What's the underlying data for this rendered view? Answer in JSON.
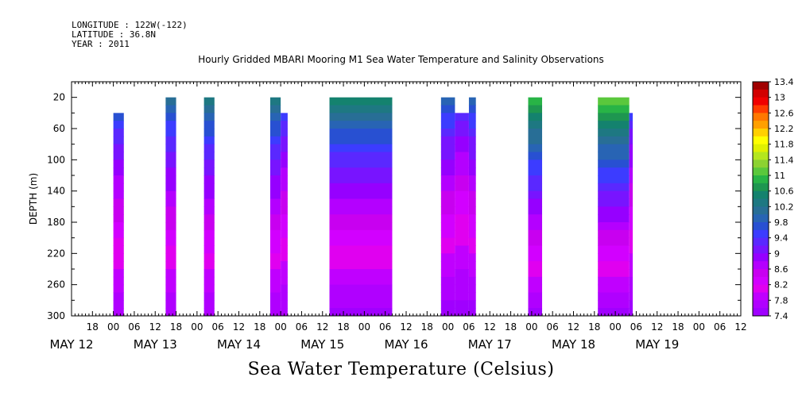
{
  "header": {
    "longitude": "LONGITUDE : 122W(-122)",
    "latitude": "LATITUDE : 36.8N",
    "year": "YEAR : 2011"
  },
  "chart_data": {
    "type": "heatmap",
    "title": "Hourly Gridded MBARI Mooring M1 Sea Water Temperature and Salinity Observations",
    "xlabel": "Sea Water Temperature (Celsius)",
    "ylabel": "DEPTH (m)",
    "x_hours_range": [
      -12,
      180
    ],
    "xlim_hours_since_may12_00": [
      -12,
      180
    ],
    "ylim": [
      300,
      0
    ],
    "y_ticks": [
      20,
      60,
      100,
      140,
      180,
      220,
      260,
      300
    ],
    "x_ticks": [
      {
        "h": -6,
        "label": "18"
      },
      {
        "h": 0,
        "label": "00"
      },
      {
        "h": 6,
        "label": "06"
      },
      {
        "h": 12,
        "label": "12"
      },
      {
        "h": 18,
        "label": "18"
      },
      {
        "h": 24,
        "label": "00"
      },
      {
        "h": 30,
        "label": "06"
      },
      {
        "h": 36,
        "label": "12"
      },
      {
        "h": 42,
        "label": "18"
      },
      {
        "h": 48,
        "label": "00"
      },
      {
        "h": 54,
        "label": "06"
      },
      {
        "h": 60,
        "label": "12"
      },
      {
        "h": 66,
        "label": "18"
      },
      {
        "h": 72,
        "label": "00"
      },
      {
        "h": 78,
        "label": "06"
      },
      {
        "h": 84,
        "label": "12"
      },
      {
        "h": 90,
        "label": "18"
      },
      {
        "h": 96,
        "label": "00"
      },
      {
        "h": 102,
        "label": "06"
      },
      {
        "h": 108,
        "label": "12"
      },
      {
        "h": 114,
        "label": "18"
      },
      {
        "h": 120,
        "label": "00"
      },
      {
        "h": 126,
        "label": "06"
      },
      {
        "h": 132,
        "label": "12"
      },
      {
        "h": 138,
        "label": "18"
      },
      {
        "h": 144,
        "label": "00"
      },
      {
        "h": 150,
        "label": "06"
      },
      {
        "h": 156,
        "label": "12"
      },
      {
        "h": 162,
        "label": "18"
      },
      {
        "h": 168,
        "label": "00"
      },
      {
        "h": 174,
        "label": "06"
      },
      {
        "h": 180,
        "label": "12"
      }
    ],
    "date_labels": [
      {
        "h": -12,
        "label": "MAY 12"
      },
      {
        "h": 12,
        "label": "MAY 13"
      },
      {
        "h": 36,
        "label": "MAY 14"
      },
      {
        "h": 60,
        "label": "MAY 15"
      },
      {
        "h": 84,
        "label": "MAY 16"
      },
      {
        "h": 108,
        "label": "MAY 17"
      },
      {
        "h": 132,
        "label": "MAY 18"
      },
      {
        "h": 156,
        "label": "MAY 19"
      }
    ],
    "data_segments": [
      {
        "start_h": 0,
        "end_h": 3,
        "top_depth": 40,
        "surface_temp": 9.8,
        "bottom_temp": 7.6
      },
      {
        "start_h": 15,
        "end_h": 18,
        "top_depth": 20,
        "surface_temp": 10.2,
        "bottom_temp": 7.6
      },
      {
        "start_h": 26,
        "end_h": 29,
        "top_depth": 20,
        "surface_temp": 10.4,
        "bottom_temp": 7.6
      },
      {
        "start_h": 45,
        "end_h": 48,
        "top_depth": 20,
        "surface_temp": 10.4,
        "bottom_temp": 7.6
      },
      {
        "start_h": 48,
        "end_h": 50,
        "top_depth": 40,
        "surface_temp": 9.6,
        "bottom_temp": 7.6
      },
      {
        "start_h": 62,
        "end_h": 80,
        "top_depth": 20,
        "surface_temp": 10.6,
        "bottom_temp": 7.5
      },
      {
        "start_h": 94,
        "end_h": 98,
        "top_depth": 20,
        "surface_temp": 10.0,
        "bottom_temp": 7.5
      },
      {
        "start_h": 98,
        "end_h": 102,
        "top_depth": 40,
        "surface_temp": 9.4,
        "bottom_temp": 7.5
      },
      {
        "start_h": 102,
        "end_h": 104,
        "top_depth": 20,
        "surface_temp": 10.0,
        "bottom_temp": 7.5
      },
      {
        "start_h": 119,
        "end_h": 123,
        "top_depth": 20,
        "surface_temp": 11.2,
        "bottom_temp": 7.5
      },
      {
        "start_h": 139,
        "end_h": 148,
        "top_depth": 20,
        "surface_temp": 11.4,
        "bottom_temp": 7.5
      },
      {
        "start_h": 148,
        "end_h": 149,
        "top_depth": 40,
        "surface_temp": 9.6,
        "bottom_temp": 7.5
      }
    ],
    "colorbar": {
      "labels": [
        "13.4",
        "13",
        "12.6",
        "12.2",
        "11.8",
        "11.4",
        "11",
        "10.6",
        "10.2",
        "9.8",
        "9.4",
        "9",
        "8.6",
        "8.2",
        "7.8",
        "7.4"
      ],
      "colors": [
        "#a00000",
        "#d20000",
        "#f00000",
        "#ff3c00",
        "#ff7800",
        "#ffa000",
        "#ffd000",
        "#ffff00",
        "#e0f000",
        "#b4e61e",
        "#8cd232",
        "#5ac83c",
        "#28b446",
        "#1e9650",
        "#14826e",
        "#1e7882",
        "#286e96",
        "#2864b4",
        "#2850d2",
        "#3c3cff",
        "#5a28ff",
        "#7814ff",
        "#9600ff",
        "#b400ff",
        "#c800f0",
        "#d200ff",
        "#e000f0",
        "#c000ff",
        "#b000ff",
        "#a000ff"
      ],
      "range": [
        7.4,
        13.4
      ]
    }
  }
}
